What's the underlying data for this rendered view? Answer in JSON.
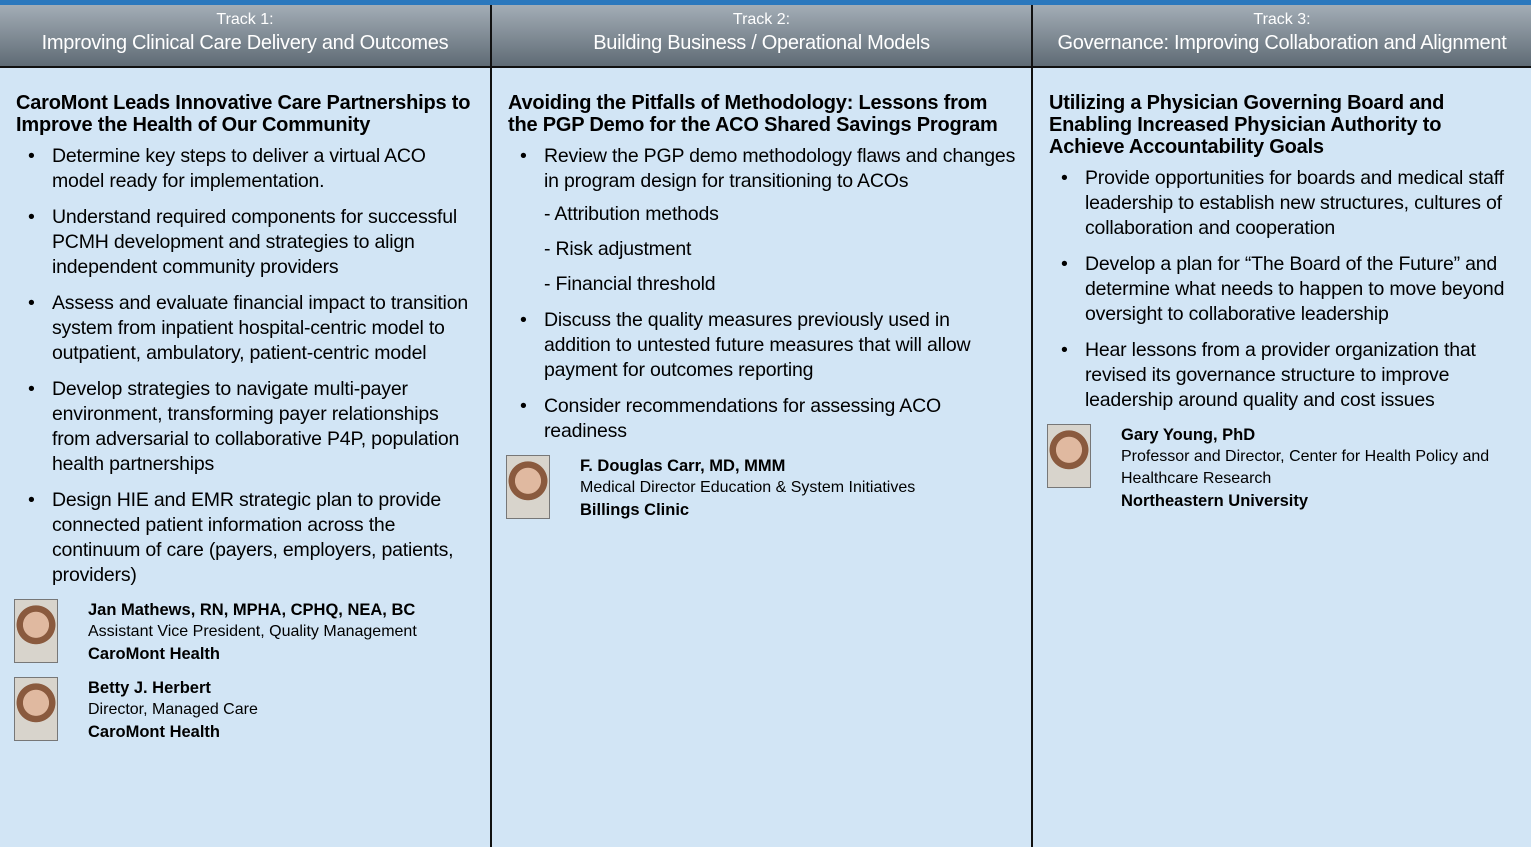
{
  "tracks": [
    {
      "label": "Track 1:",
      "name": "Improving Clinical Care Delivery and Outcomes",
      "session_title": "CaroMont Leads Innovative Care Partnerships to Improve the Health of Our Community",
      "bullets": [
        {
          "text": "Determine key steps to deliver a virtual ACO model ready for implementation."
        },
        {
          "text": "Understand required components for successful PCMH development and strategies to align independent community providers"
        },
        {
          "text": "Assess and evaluate financial impact to transition system from inpatient hospital-centric model to outpatient, ambulatory, patient-centric model"
        },
        {
          "text": "Develop strategies to navigate multi-payer environment, transforming payer relationships from adversarial to collaborative P4P, population health partnerships"
        },
        {
          "text": "Design HIE and EMR strategic plan to provide connected patient information across the continuum of care (payers, employers, patients, providers)"
        }
      ],
      "speakers": [
        {
          "name": "Jan Mathews, RN, MPHA, CPHQ, NEA, BC",
          "title": "Assistant Vice President, Quality Management",
          "org": "CaroMont Health"
        },
        {
          "name": "Betty J. Herbert",
          "title": "Director, Managed Care",
          "org": "CaroMont Health"
        }
      ]
    },
    {
      "label": "Track 2:",
      "name": "Building Business / Operational Models",
      "session_title": "Avoiding the Pitfalls of Methodology: Lessons from the PGP Demo for the ACO Shared Savings Program",
      "bullets": [
        {
          "text": "Review the PGP demo methodology flaws and changes in program design for transitioning to ACOs",
          "sub_items": [
            "- Attribution methods",
            "- Risk adjustment",
            "- Financial threshold"
          ]
        },
        {
          "text": "Discuss the quality measures previously used in addition to untested future measures that will allow payment for outcomes reporting"
        },
        {
          "text": "Consider recommendations for assessing ACO readiness"
        }
      ],
      "speakers": [
        {
          "name": "F. Douglas Carr, MD, MMM",
          "title": "Medical Director Education & System Initiatives",
          "org": "Billings Clinic"
        }
      ]
    },
    {
      "label": "Track 3:",
      "name": "Governance: Improving Collaboration and Alignment",
      "session_title": "Utilizing a Physician Governing Board and Enabling Increased Physician Authority to Achieve Accountability Goals",
      "bullets": [
        {
          "text": "Provide opportunities for boards and medical staff leadership to establish new structures, cultures of collaboration and cooperation"
        },
        {
          "text": "Develop a plan for “The Board of the Future” and determine what needs to happen to move beyond oversight to collaborative leadership"
        },
        {
          "text": "Hear lessons from a provider organization that revised its governance structure to improve leadership around quality and cost issues"
        }
      ],
      "speakers": [
        {
          "name": "Gary Young, PhD",
          "title": "Professor and Director, Center for Health Policy and Healthcare Research",
          "org": "Northeastern University"
        }
      ]
    }
  ]
}
